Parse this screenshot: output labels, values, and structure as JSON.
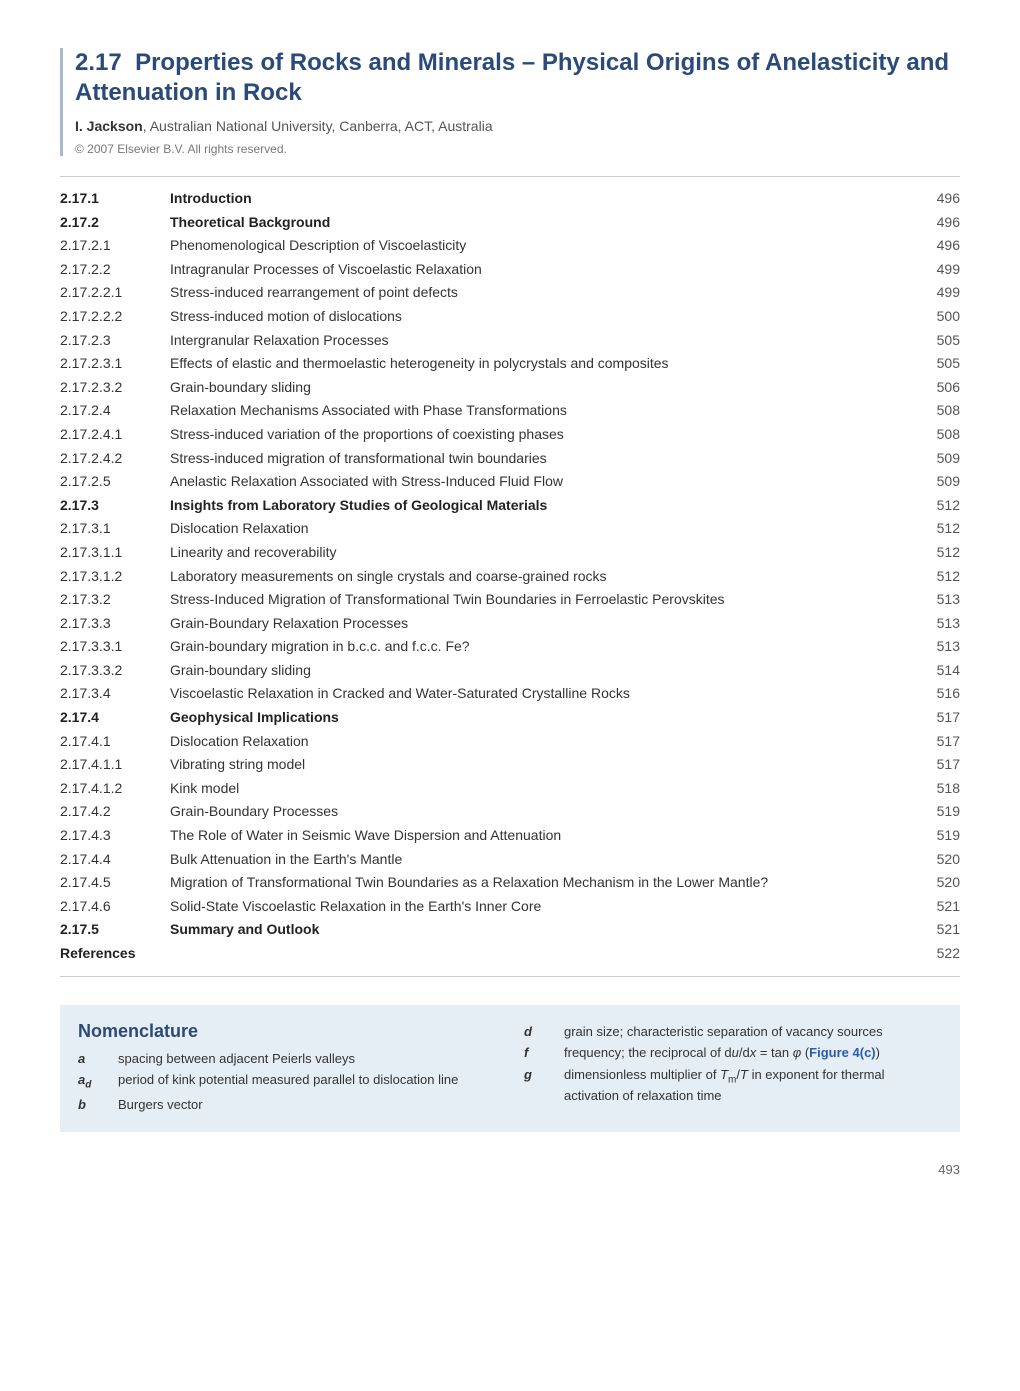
{
  "chapter": {
    "number": "2.17",
    "title": "Properties of Rocks and Minerals – Physical Origins of Anelasticity and Attenuation in Rock",
    "author_name": "I. Jackson",
    "author_affil": ", Australian National University, Canberra, ACT, Australia",
    "copyright": "© 2007 Elsevier B.V. All rights reserved."
  },
  "toc": [
    {
      "num": "2.17.1",
      "title": "Introduction",
      "page": "496",
      "level": 0,
      "bold": true
    },
    {
      "num": "2.17.2",
      "title": "Theoretical Background",
      "page": "496",
      "level": 0,
      "bold": true
    },
    {
      "num": "2.17.2.1",
      "title": "Phenomenological Description of Viscoelasticity",
      "page": "496",
      "level": 1,
      "bold": false
    },
    {
      "num": "2.17.2.2",
      "title": "Intragranular Processes of Viscoelastic Relaxation",
      "page": "499",
      "level": 1,
      "bold": false
    },
    {
      "num": "2.17.2.2.1",
      "title": "Stress-induced rearrangement of point defects",
      "page": "499",
      "level": 2,
      "bold": false
    },
    {
      "num": "2.17.2.2.2",
      "title": "Stress-induced motion of dislocations",
      "page": "500",
      "level": 2,
      "bold": false
    },
    {
      "num": "2.17.2.3",
      "title": "Intergranular Relaxation Processes",
      "page": "505",
      "level": 1,
      "bold": false
    },
    {
      "num": "2.17.2.3.1",
      "title": "Effects of elastic and thermoelastic heterogeneity in polycrystals and composites",
      "page": "505",
      "level": 2,
      "bold": false
    },
    {
      "num": "2.17.2.3.2",
      "title": "Grain-boundary sliding",
      "page": "506",
      "level": 2,
      "bold": false
    },
    {
      "num": "2.17.2.4",
      "title": "Relaxation Mechanisms Associated with Phase Transformations",
      "page": "508",
      "level": 1,
      "bold": false
    },
    {
      "num": "2.17.2.4.1",
      "title": "Stress-induced variation of the proportions of coexisting phases",
      "page": "508",
      "level": 2,
      "bold": false
    },
    {
      "num": "2.17.2.4.2",
      "title": "Stress-induced migration of transformational twin boundaries",
      "page": "509",
      "level": 2,
      "bold": false
    },
    {
      "num": "2.17.2.5",
      "title": "Anelastic Relaxation Associated with Stress-Induced Fluid Flow",
      "page": "509",
      "level": 1,
      "bold": false
    },
    {
      "num": "2.17.3",
      "title": "Insights from Laboratory Studies of Geological Materials",
      "page": "512",
      "level": 0,
      "bold": true
    },
    {
      "num": "2.17.3.1",
      "title": "Dislocation Relaxation",
      "page": "512",
      "level": 1,
      "bold": false
    },
    {
      "num": "2.17.3.1.1",
      "title": "Linearity and recoverability",
      "page": "512",
      "level": 2,
      "bold": false
    },
    {
      "num": "2.17.3.1.2",
      "title": "Laboratory measurements on single crystals and coarse-grained rocks",
      "page": "512",
      "level": 2,
      "bold": false
    },
    {
      "num": "2.17.3.2",
      "title": "Stress-Induced Migration of Transformational Twin Boundaries in Ferroelastic Perovskites",
      "page": "513",
      "level": 1,
      "bold": false
    },
    {
      "num": "2.17.3.3",
      "title": "Grain-Boundary Relaxation Processes",
      "page": "513",
      "level": 1,
      "bold": false
    },
    {
      "num": "2.17.3.3.1",
      "title": "Grain-boundary migration in b.c.c. and f.c.c. Fe?",
      "page": "513",
      "level": 2,
      "bold": false
    },
    {
      "num": "2.17.3.3.2",
      "title": "Grain-boundary sliding",
      "page": "514",
      "level": 2,
      "bold": false
    },
    {
      "num": "2.17.3.4",
      "title": "Viscoelastic Relaxation in Cracked and Water-Saturated Crystalline Rocks",
      "page": "516",
      "level": 1,
      "bold": false
    },
    {
      "num": "2.17.4",
      "title": "Geophysical Implications",
      "page": "517",
      "level": 0,
      "bold": true
    },
    {
      "num": "2.17.4.1",
      "title": "Dislocation Relaxation",
      "page": "517",
      "level": 1,
      "bold": false
    },
    {
      "num": "2.17.4.1.1",
      "title": "Vibrating string model",
      "page": "517",
      "level": 2,
      "bold": false
    },
    {
      "num": "2.17.4.1.2",
      "title": "Kink model",
      "page": "518",
      "level": 2,
      "bold": false
    },
    {
      "num": "2.17.4.2",
      "title": "Grain-Boundary Processes",
      "page": "519",
      "level": 1,
      "bold": false
    },
    {
      "num": "2.17.4.3",
      "title": "The Role of Water in Seismic Wave Dispersion and Attenuation",
      "page": "519",
      "level": 1,
      "bold": false
    },
    {
      "num": "2.17.4.4",
      "title": "Bulk Attenuation in the Earth's Mantle",
      "page": "520",
      "level": 1,
      "bold": false
    },
    {
      "num": "2.17.4.5",
      "title": "Migration of Transformational Twin Boundaries as a Relaxation Mechanism in the Lower Mantle?",
      "page": "520",
      "level": 1,
      "bold": false
    },
    {
      "num": "2.17.4.6",
      "title": "Solid-State Viscoelastic Relaxation in the Earth's Inner Core",
      "page": "521",
      "level": 1,
      "bold": false
    },
    {
      "num": "2.17.5",
      "title": "Summary and Outlook",
      "page": "521",
      "level": 0,
      "bold": true
    },
    {
      "num": "References",
      "title": "",
      "page": "522",
      "level": 0,
      "bold": true
    }
  ],
  "nomenclature": {
    "heading": "Nomenclature",
    "left": [
      {
        "sym": "a",
        "def": "spacing between adjacent Peierls valleys"
      },
      {
        "sym": "a_d",
        "def": "period of kink potential measured parallel to dislocation line"
      },
      {
        "sym": "b",
        "def": "Burgers vector"
      }
    ],
    "right": [
      {
        "sym": "d",
        "def": "grain size; characteristic separation of vacancy sources"
      },
      {
        "sym": "f",
        "def_html": "frequency; the reciprocal of d<i>u</i>/d<i>x</i> = tan <i>φ</i> (<span class='link'>Figure 4(c)</span>)"
      },
      {
        "sym": "g",
        "def_html": "dimensionless multiplier of <i>T</i><span class='sub'>m</span>/<i>T</i> in exponent for thermal activation of relaxation time"
      }
    ]
  },
  "page_number": "493",
  "colors": {
    "heading_blue": "#2a4a7a",
    "rule_blue": "#a8b8d0",
    "box_bg": "#e6eef5",
    "link_blue": "#2a5db0"
  }
}
